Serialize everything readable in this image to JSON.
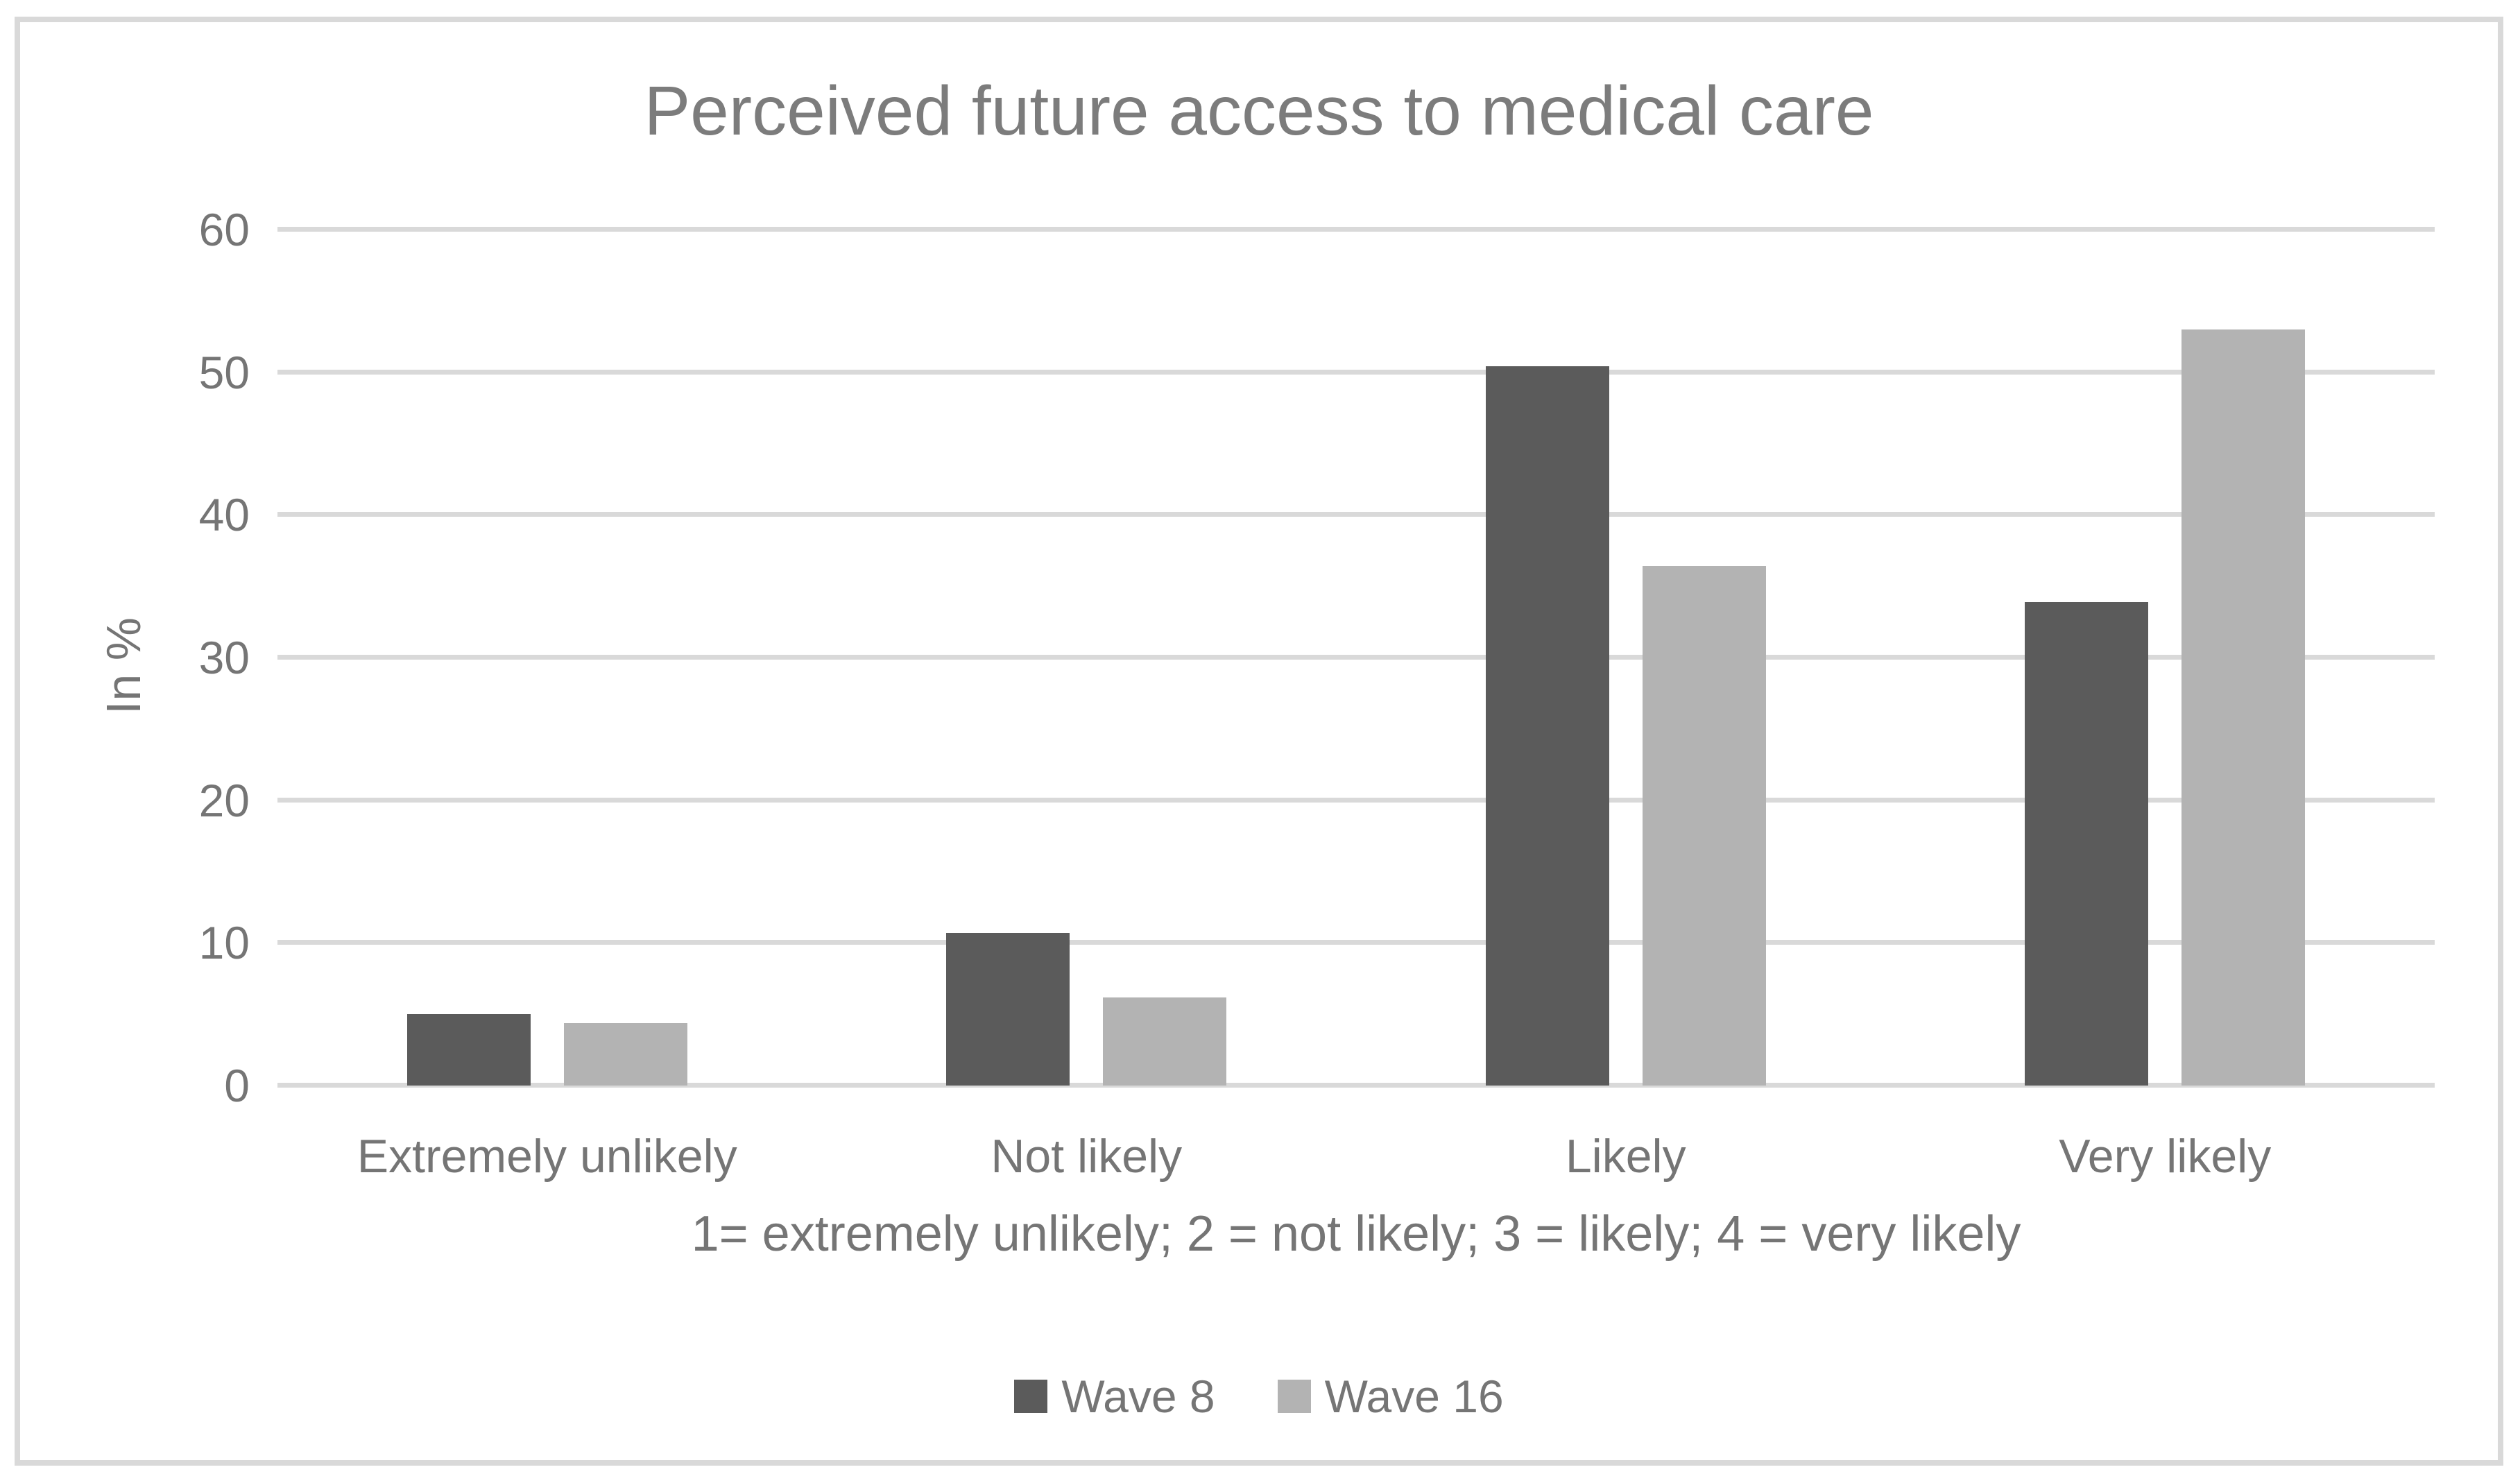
{
  "chart_data": {
    "type": "bar",
    "title": "Perceived future access to medical care",
    "ylabel": "In %",
    "xlabel_note": "1= extremely unlikely; 2 = not likely; 3 = likely; 4 = very likely",
    "categories": [
      "Extremely unlikely",
      "Not likely",
      "Likely",
      "Very likely"
    ],
    "series": [
      {
        "name": "Wave 8",
        "color": "#5b5b5b",
        "values": [
          5.0,
          10.7,
          50.4,
          33.9
        ]
      },
      {
        "name": "Wave 16",
        "color": "#b3b3b3",
        "values": [
          4.4,
          6.2,
          36.4,
          53.0
        ]
      }
    ],
    "ylim": [
      0,
      60
    ],
    "yticks": [
      0,
      10,
      20,
      30,
      40,
      50,
      60
    ],
    "grid": true,
    "legend_position": "bottom"
  },
  "style": {
    "frame_border_color": "#d9d9d9",
    "gridline_color": "#d9d9d9",
    "text_color": "#757575",
    "title_color": "#7c7c7c",
    "background": "#ffffff"
  }
}
